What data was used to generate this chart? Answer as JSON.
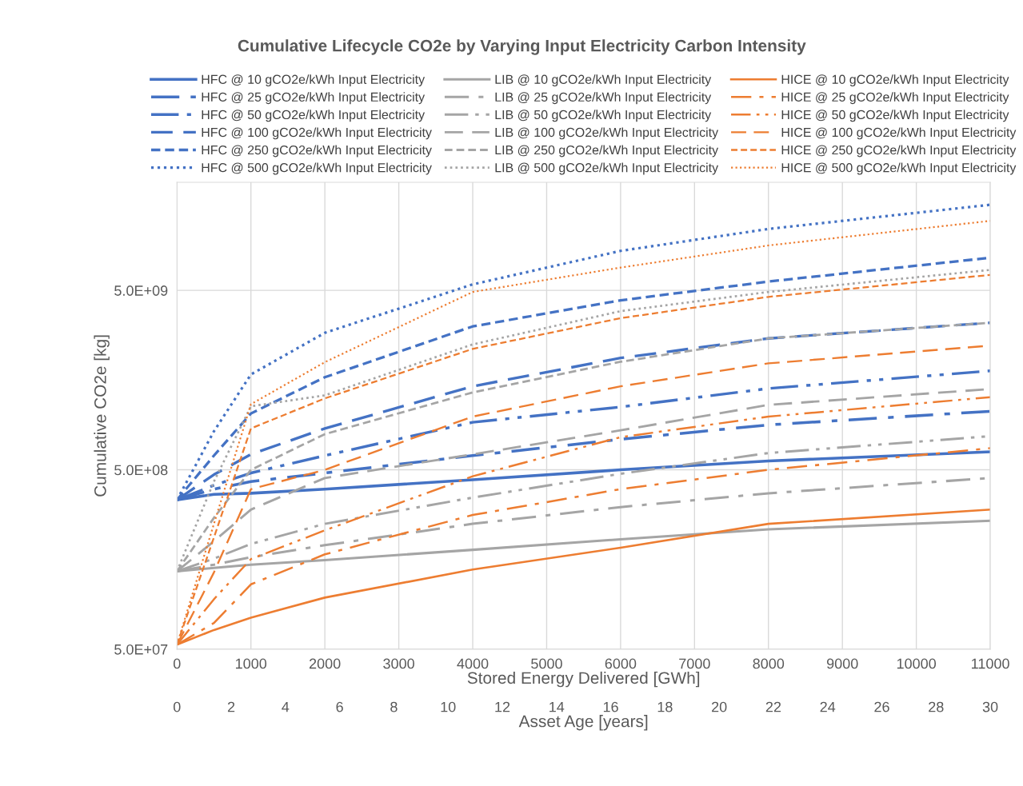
{
  "chart_data": {
    "type": "line",
    "title": "Cumulative Lifecycle CO2e by Varying Input Electricity Carbon Intensity",
    "xlabel": "Stored Energy Delivered [GWh]",
    "ylabel": "Cumulative CO2e [kg]",
    "x2label": "Asset Age [years]",
    "x": [
      0,
      500,
      1000,
      2000,
      4000,
      6000,
      8000,
      11000
    ],
    "xlim": [
      0,
      11000
    ],
    "xticks": [
      0,
      1000,
      2000,
      3000,
      4000,
      5000,
      6000,
      7000,
      8000,
      9000,
      10000,
      11000
    ],
    "x2lim": [
      0,
      30
    ],
    "x2ticks": [
      0,
      2,
      4,
      6,
      8,
      10,
      12,
      14,
      16,
      18,
      20,
      22,
      24,
      26,
      28,
      30
    ],
    "log": "y",
    "ylim": [
      50000000,
      20000000000
    ],
    "yticks": [
      {
        "value": 50000000,
        "label": "5.0E+07"
      },
      {
        "value": 500000000,
        "label": "5.0E+08"
      },
      {
        "value": 5000000000,
        "label": "5.0E+09"
      }
    ],
    "grid": true,
    "legend": "top",
    "marker": "none",
    "series": [
      {
        "name": "HFC @ 10 gCO2e/kWh Input Electricity",
        "color": "#4472c4",
        "line_style": "solid",
        "values": [
          340000000,
          365000000,
          370000000,
          390000000,
          440000000,
          500000000,
          560000000,
          630000000
        ]
      },
      {
        "name": "HFC @ 25 gCO2e/kWh Input Electricity",
        "color": "#4472c4",
        "line_style": "dashdot",
        "values": [
          340000000,
          390000000,
          430000000,
          480000000,
          600000000,
          740000000,
          890000000,
          1060000000
        ]
      },
      {
        "name": "HFC @ 50 gCO2e/kWh Input Electricity",
        "color": "#4472c4",
        "line_style": "dashdotdot",
        "values": [
          340000000,
          410000000,
          480000000,
          600000000,
          920000000,
          1120000000,
          1420000000,
          1780000000
        ]
      },
      {
        "name": "HFC @ 100 gCO2e/kWh Input Electricity",
        "color": "#4472c4",
        "line_style": "dashed",
        "values": [
          340000000,
          470000000,
          610000000,
          850000000,
          1460000000,
          2100000000,
          2700000000,
          3300000000
        ]
      },
      {
        "name": "HFC @ 250 gCO2e/kWh Input Electricity",
        "color": "#4472c4",
        "line_style": "densedashed",
        "values": [
          340000000,
          600000000,
          1030000000,
          1640000000,
          3150000000,
          4400000000,
          5600000000,
          7600000000
        ]
      },
      {
        "name": "HFC @ 500 gCO2e/kWh Input Electricity",
        "color": "#4472c4",
        "line_style": "dotted",
        "values": [
          340000000,
          820000000,
          1700000000,
          2900000000,
          5400000000,
          8300000000,
          11000000000,
          15000000000
        ]
      },
      {
        "name": "LIB @ 10 gCO2e/kWh Input Electricity",
        "color": "#a5a5a5",
        "line_style": "solid",
        "values": [
          136000000,
          142000000,
          148000000,
          157000000,
          179000000,
          205000000,
          233000000,
          260000000
        ]
      },
      {
        "name": "LIB @ 25 gCO2e/kWh Input Electricity",
        "color": "#a5a5a5",
        "line_style": "dashdot",
        "values": [
          136000000,
          148000000,
          163000000,
          190000000,
          250000000,
          310000000,
          370000000,
          450000000
        ]
      },
      {
        "name": "LIB @ 50 gCO2e/kWh Input Electricity",
        "color": "#a5a5a5",
        "line_style": "dashdotdot",
        "values": [
          136000000,
          160000000,
          193000000,
          250000000,
          350000000,
          475000000,
          620000000,
          770000000
        ]
      },
      {
        "name": "LIB @ 100 gCO2e/kWh Input Electricity",
        "color": "#a5a5a5",
        "line_style": "dashed",
        "values": [
          136000000,
          200000000,
          300000000,
          450000000,
          610000000,
          830000000,
          1150000000,
          1410000000
        ]
      },
      {
        "name": "LIB @ 250 gCO2e/kWh Input Electricity",
        "color": "#a5a5a5",
        "line_style": "densedashed",
        "values": [
          136000000,
          270000000,
          500000000,
          790000000,
          1350000000,
          2000000000,
          2700000000,
          3300000000
        ]
      },
      {
        "name": "LIB @ 500 gCO2e/kWh Input Electricity",
        "color": "#a5a5a5",
        "line_style": "dotted",
        "values": [
          136000000,
          430000000,
          1130000000,
          1300000000,
          2500000000,
          3830000000,
          4900000000,
          6500000000
        ]
      },
      {
        "name": "HICE @ 10 gCO2e/kWh Input Electricity",
        "color": "#ed7d31",
        "line_style": "solid",
        "values": [
          53000000,
          64000000,
          75000000,
          97000000,
          139000000,
          184000000,
          250000000,
          300000000
        ]
      },
      {
        "name": "HICE @ 25 gCO2e/kWh Input Electricity",
        "color": "#ed7d31",
        "line_style": "dashdot",
        "values": [
          53000000,
          70000000,
          115000000,
          169000000,
          280000000,
          390000000,
          500000000,
          660000000
        ]
      },
      {
        "name": "HICE @ 50 gCO2e/kWh Input Electricity",
        "color": "#ed7d31",
        "line_style": "dashdotdot",
        "values": [
          53000000,
          95000000,
          159000000,
          230000000,
          460000000,
          760000000,
          990000000,
          1270000000
        ]
      },
      {
        "name": "HICE @ 100 gCO2e/kWh Input Electricity",
        "color": "#ed7d31",
        "line_style": "dashed",
        "values": [
          53000000,
          134000000,
          390000000,
          500000000,
          990000000,
          1460000000,
          1960000000,
          2460000000
        ]
      },
      {
        "name": "HICE @ 250 gCO2e/kWh Input Electricity",
        "color": "#ed7d31",
        "line_style": "densedashed",
        "values": [
          53000000,
          210000000,
          850000000,
          1250000000,
          2360000000,
          3500000000,
          4600000000,
          6100000000
        ]
      },
      {
        "name": "HICE @ 500 gCO2e/kWh Input Electricity",
        "color": "#ed7d31",
        "line_style": "dotted",
        "values": [
          53000000,
          250000000,
          1160000000,
          1990000000,
          4900000000,
          6700000000,
          8900000000,
          12200000000
        ]
      }
    ]
  }
}
